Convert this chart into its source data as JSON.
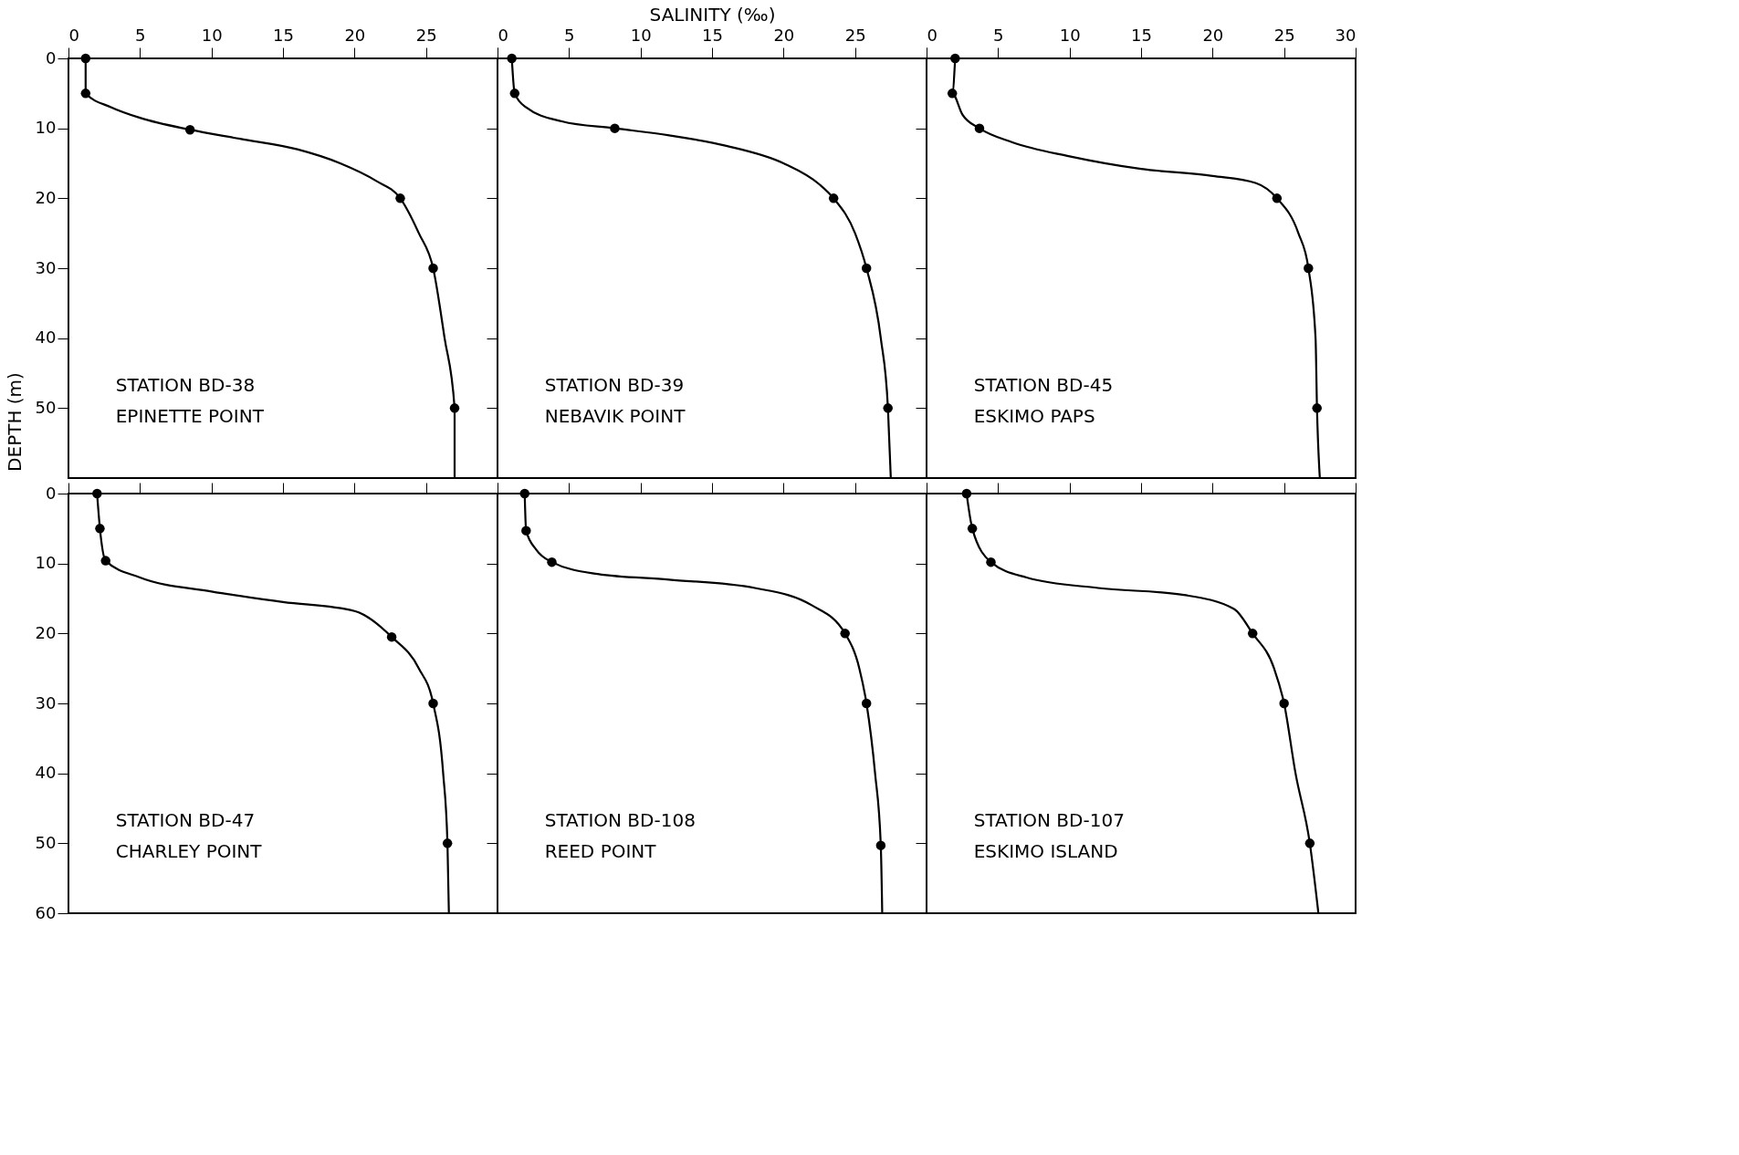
{
  "chart_data": [
    {
      "type": "line",
      "ylabel": "DEPTH (m)",
      "annotations": [
        "STATION BD-38",
        "EPINETTE POINT"
      ],
      "xlim": [
        0,
        30
      ],
      "ylim": [
        60,
        0
      ],
      "xticks": [
        0,
        5,
        10,
        15,
        20,
        25,
        {
          "value": 30,
          "label": null
        }
      ],
      "yticks": [
        0,
        10,
        20,
        30,
        40,
        50
      ],
      "grid": false,
      "series": [
        {
          "marker": "none",
          "color": "#000000",
          "x": [
            1.2,
            1.2,
            3,
            5,
            8.5,
            12,
            16,
            19,
            21.5,
            23.2,
            24.5,
            25.5,
            26.3,
            27,
            27
          ],
          "values": [
            0,
            5,
            7,
            8.5,
            10.2,
            11.5,
            13,
            15,
            17.5,
            20,
            25,
            30,
            40,
            50,
            60
          ]
        },
        {
          "type": "scatter",
          "marker": "circle",
          "color": "#000000",
          "x": [
            1.2,
            1.2,
            8.5,
            23.2,
            25.5,
            27
          ],
          "values": [
            0,
            5,
            10.2,
            20,
            30,
            50
          ]
        }
      ]
    },
    {
      "type": "line",
      "xlabel": "SALINITY (‰)",
      "annotations": [
        "STATION BD-39",
        "NEBAVIK POINT"
      ],
      "xlim": [
        0,
        30
      ],
      "ylim": [
        60,
        0
      ],
      "xticks": [
        0,
        5,
        10,
        15,
        20,
        25,
        {
          "value": 30,
          "label": null
        }
      ],
      "yticks": [
        0,
        10,
        20,
        30,
        40,
        50
      ],
      "tick_labels": "x",
      "grid": false,
      "series": [
        {
          "marker": "none",
          "color": "#000000",
          "x": [
            1,
            1.2,
            2,
            4.5,
            8.2,
            12,
            16,
            20,
            22.5,
            23.5,
            25,
            25.8,
            26.8,
            27.3,
            27.5
          ],
          "values": [
            0,
            5,
            7,
            9,
            10,
            11,
            12.5,
            15,
            18,
            20,
            25,
            30,
            40,
            50,
            60
          ]
        },
        {
          "type": "scatter",
          "marker": "circle",
          "color": "#000000",
          "x": [
            1,
            1.2,
            8.2,
            23.5,
            25.8,
            27.3
          ],
          "values": [
            0,
            5,
            10,
            20,
            30,
            50
          ]
        }
      ]
    },
    {
      "type": "line",
      "annotations": [
        "STATION BD-45",
        "ESKIMO PAPS"
      ],
      "xlim": [
        0,
        30
      ],
      "ylim": [
        60,
        0
      ],
      "xticks": [
        0,
        5,
        10,
        15,
        20,
        25,
        30
      ],
      "yticks": [
        0,
        10,
        20,
        30,
        40,
        50
      ],
      "tick_labels": "x",
      "grid": false,
      "series": [
        {
          "marker": "none",
          "color": "#000000",
          "x": [
            2,
            1.8,
            2.5,
            3.7,
            6,
            10,
            15,
            20,
            23,
            24.5,
            26,
            26.7,
            27.2,
            27.3,
            27.5
          ],
          "values": [
            0,
            5,
            8,
            10,
            12,
            14,
            15.8,
            16.8,
            17.8,
            20,
            25,
            30,
            40,
            50,
            60
          ]
        },
        {
          "type": "scatter",
          "marker": "circle",
          "color": "#000000",
          "x": [
            2,
            1.8,
            3.7,
            24.5,
            26.7,
            27.3
          ],
          "values": [
            0,
            5,
            10,
            20,
            30,
            50
          ]
        }
      ]
    },
    {
      "type": "line",
      "annotations": [
        "STATION BD-47",
        "CHARLEY POINT"
      ],
      "xlim": [
        0,
        30
      ],
      "ylim": [
        60,
        0
      ],
      "xticks": [
        0,
        5,
        10,
        15,
        20,
        25,
        30
      ],
      "yticks": [
        0,
        10,
        20,
        30,
        40,
        50,
        60
      ],
      "tick_labels": "y",
      "grid": false,
      "series": [
        {
          "marker": "none",
          "color": "#000000",
          "x": [
            2,
            2.2,
            2.6,
            5,
            10,
            15,
            20,
            22.6,
            24.5,
            25.5,
            26.2,
            26.5,
            26.6
          ],
          "values": [
            0,
            5,
            9.6,
            12,
            14,
            15.5,
            16.8,
            20.5,
            25,
            30,
            40,
            50,
            60
          ]
        },
        {
          "type": "scatter",
          "marker": "circle",
          "color": "#000000",
          "x": [
            2,
            2.2,
            2.6,
            22.6,
            25.5,
            26.5
          ],
          "values": [
            0,
            5,
            9.6,
            20.5,
            30,
            50
          ]
        }
      ]
    },
    {
      "type": "line",
      "annotations": [
        "STATION BD-108",
        "REED POINT"
      ],
      "xlim": [
        0,
        30
      ],
      "ylim": [
        60,
        0
      ],
      "xticks": [
        0,
        5,
        10,
        15,
        20,
        25,
        30
      ],
      "yticks": [
        0,
        10,
        20,
        30,
        40,
        50,
        60
      ],
      "tick_labels": false,
      "grid": false,
      "series": [
        {
          "marker": "none",
          "color": "#000000",
          "x": [
            1.9,
            2,
            2.7,
            3.8,
            7,
            12,
            18,
            22,
            24.3,
            25.3,
            25.8,
            26.4,
            26.8,
            26.9
          ],
          "values": [
            0,
            5.3,
            8,
            9.8,
            11.5,
            12.3,
            13.5,
            16,
            20,
            25,
            30,
            40,
            50.3,
            60
          ]
        },
        {
          "type": "scatter",
          "marker": "circle",
          "color": "#000000",
          "x": [
            1.9,
            2,
            3.8,
            24.3,
            25.8,
            26.8
          ],
          "values": [
            0,
            5.3,
            9.8,
            20,
            30,
            50.3
          ]
        }
      ]
    },
    {
      "type": "line",
      "annotations": [
        "STATION BD-107",
        "ESKIMO  ISLAND"
      ],
      "xlim": [
        0,
        30
      ],
      "ylim": [
        60,
        0
      ],
      "xticks": [
        0,
        5,
        10,
        15,
        20,
        25,
        30
      ],
      "yticks": [
        0,
        10,
        20,
        30,
        40,
        50,
        60
      ],
      "tick_labels": false,
      "grid": false,
      "series": [
        {
          "marker": "none",
          "color": "#000000",
          "x": [
            2.8,
            3.2,
            4.5,
            7,
            12,
            18,
            21.5,
            22.8,
            24.3,
            25,
            25.8,
            26.8,
            27.4
          ],
          "values": [
            0,
            5,
            9.8,
            12,
            13.5,
            14.5,
            16.5,
            20,
            25,
            30,
            40,
            50,
            60
          ]
        },
        {
          "type": "scatter",
          "marker": "circle",
          "color": "#000000",
          "x": [
            2.8,
            3.2,
            4.5,
            22.8,
            25,
            26.8
          ],
          "values": [
            0,
            5,
            9.8,
            20,
            30,
            50
          ]
        }
      ]
    }
  ]
}
